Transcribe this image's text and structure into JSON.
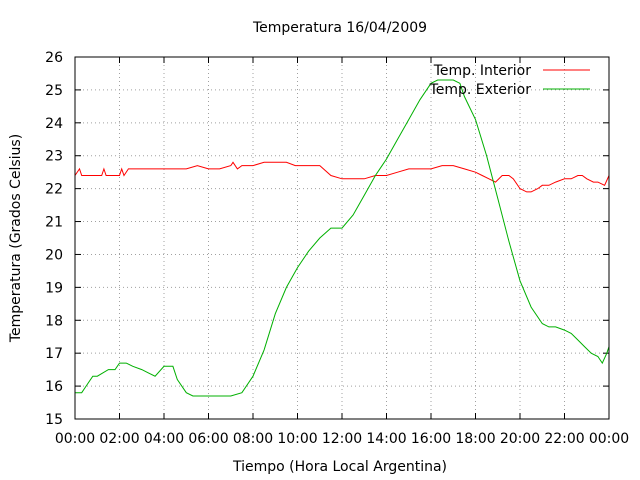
{
  "chart_data": {
    "type": "line",
    "title": "Temperatura 16/04/2009",
    "xlabel": "Tiempo (Hora Local Argentina)",
    "ylabel": "Temperatura (Grados Celsius)",
    "xlim": [
      0,
      24
    ],
    "ylim": [
      15,
      26
    ],
    "grid": true,
    "legend_position": "top-right",
    "x_ticks": [
      0,
      2,
      4,
      6,
      8,
      10,
      12,
      14,
      16,
      18,
      20,
      22,
      24
    ],
    "x_tick_labels": [
      "00:00",
      "02:00",
      "04:00",
      "06:00",
      "08:00",
      "10:00",
      "12:00",
      "14:00",
      "16:00",
      "18:00",
      "20:00",
      "22:00",
      "00:00"
    ],
    "y_ticks": [
      15,
      16,
      17,
      18,
      19,
      20,
      21,
      22,
      23,
      24,
      25,
      26
    ],
    "y_tick_labels": [
      "15",
      "16",
      "17",
      "18",
      "19",
      "20",
      "21",
      "22",
      "23",
      "24",
      "25",
      "26"
    ],
    "x_unit": "hours",
    "series": [
      {
        "name": "Temp. Interior",
        "color": "#ff0000",
        "x": [
          0,
          0.2,
          0.3,
          0.4,
          1.0,
          1.2,
          1.3,
          1.4,
          2.0,
          2.1,
          2.2,
          2.4,
          3.0,
          4.0,
          4.5,
          5.0,
          5.5,
          6.0,
          6.5,
          7.0,
          7.1,
          7.3,
          7.5,
          8.0,
          8.5,
          9.0,
          9.5,
          9.9,
          10.0,
          10.3,
          10.5,
          11.0,
          11.5,
          12.0,
          12.5,
          13.0,
          13.5,
          14.0,
          14.5,
          15.0,
          15.5,
          16.0,
          16.5,
          17.0,
          17.5,
          18.0,
          18.3,
          18.6,
          18.9,
          19.2,
          19.5,
          19.7,
          20.0,
          20.3,
          20.5,
          20.8,
          21.0,
          21.3,
          21.6,
          22.0,
          22.3,
          22.6,
          22.8,
          23.0,
          23.3,
          23.5,
          23.8,
          24.0
        ],
        "y": [
          22.4,
          22.6,
          22.4,
          22.4,
          22.4,
          22.4,
          22.6,
          22.4,
          22.4,
          22.6,
          22.4,
          22.6,
          22.6,
          22.6,
          22.6,
          22.6,
          22.7,
          22.6,
          22.6,
          22.7,
          22.8,
          22.6,
          22.7,
          22.7,
          22.8,
          22.8,
          22.8,
          22.7,
          22.7,
          22.7,
          22.7,
          22.7,
          22.4,
          22.3,
          22.3,
          22.3,
          22.4,
          22.4,
          22.5,
          22.6,
          22.6,
          22.6,
          22.7,
          22.7,
          22.6,
          22.5,
          22.4,
          22.3,
          22.2,
          22.4,
          22.4,
          22.3,
          22.0,
          21.9,
          21.9,
          22.0,
          22.1,
          22.1,
          22.2,
          22.3,
          22.3,
          22.4,
          22.4,
          22.3,
          22.2,
          22.2,
          22.1,
          22.4
        ]
      },
      {
        "name": "Temp. Exterior",
        "color": "#00b000",
        "x": [
          0,
          0.3,
          0.5,
          0.8,
          1.0,
          1.5,
          1.8,
          2.0,
          2.3,
          2.6,
          3.0,
          3.3,
          3.6,
          4.0,
          4.4,
          4.6,
          5.0,
          5.3,
          5.6,
          6.0,
          6.5,
          7.0,
          7.5,
          8.0,
          8.5,
          9.0,
          9.5,
          10.0,
          10.5,
          11.0,
          11.5,
          12.0,
          12.5,
          13.0,
          13.5,
          14.0,
          14.5,
          15.0,
          15.5,
          16.0,
          16.3,
          16.6,
          17.0,
          17.3,
          17.5,
          18.0,
          18.5,
          19.0,
          19.5,
          20.0,
          20.5,
          21.0,
          21.3,
          21.6,
          22.0,
          22.3,
          22.6,
          22.9,
          23.2,
          23.5,
          23.7,
          23.9,
          24.0
        ],
        "y": [
          15.8,
          15.8,
          16.0,
          16.3,
          16.3,
          16.5,
          16.5,
          16.7,
          16.7,
          16.6,
          16.5,
          16.4,
          16.3,
          16.6,
          16.6,
          16.2,
          15.8,
          15.7,
          15.7,
          15.7,
          15.7,
          15.7,
          15.8,
          16.3,
          17.1,
          18.2,
          19.0,
          19.6,
          20.1,
          20.5,
          20.8,
          20.8,
          21.2,
          21.8,
          22.4,
          22.9,
          23.5,
          24.1,
          24.7,
          25.2,
          25.3,
          25.3,
          25.3,
          25.2,
          24.8,
          24.1,
          23.0,
          21.7,
          20.4,
          19.2,
          18.4,
          17.9,
          17.8,
          17.8,
          17.7,
          17.6,
          17.4,
          17.2,
          17.0,
          16.9,
          16.7,
          17.0,
          17.2
        ]
      }
    ]
  }
}
